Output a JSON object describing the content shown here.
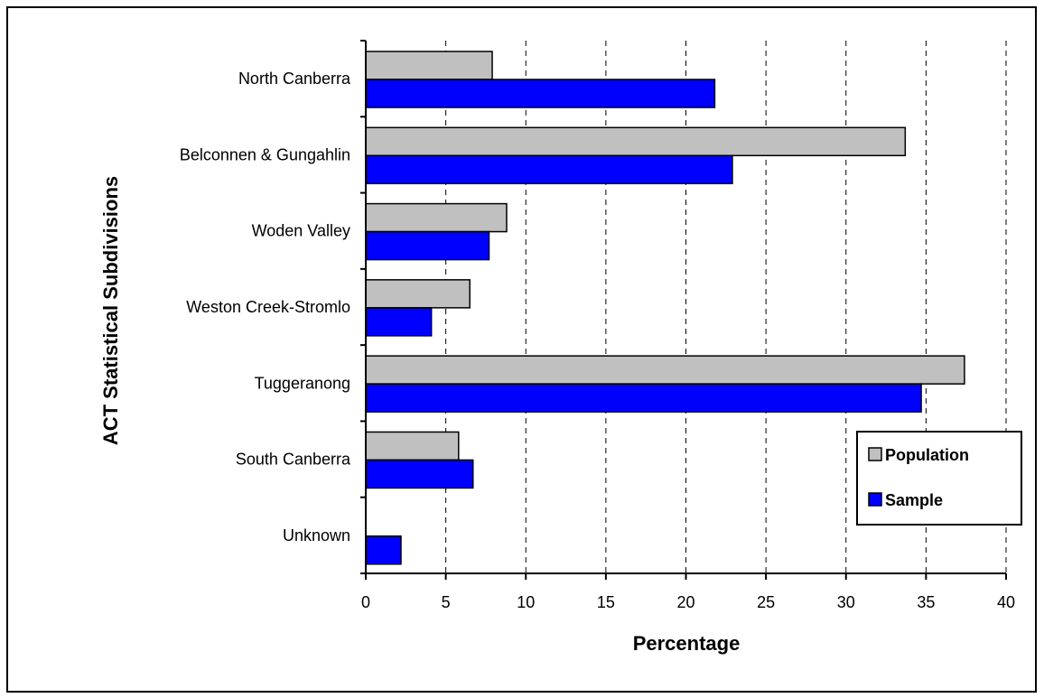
{
  "chart_data": {
    "type": "bar",
    "orientation": "horizontal",
    "xlabel": "Percentage",
    "ylabel": "ACT Statistical Subdivisions",
    "xlim": [
      0,
      40
    ],
    "xticks": [
      0,
      5,
      10,
      15,
      20,
      25,
      30,
      35,
      40
    ],
    "grid": "vertical-dashed",
    "legend_position": "right",
    "categories": [
      "North Canberra",
      "Belconnen & Gungahlin",
      "Woden Valley",
      "Weston Creek-Stromlo",
      "Tuggeranong",
      "South Canberra",
      "Unknown"
    ],
    "series": [
      {
        "name": "Population",
        "color": "#c0c0c0",
        "values": [
          7.9,
          33.7,
          8.8,
          6.5,
          37.4,
          5.8,
          0
        ]
      },
      {
        "name": "Sample",
        "color": "#0000ff",
        "values": [
          21.8,
          22.9,
          7.7,
          4.1,
          34.7,
          6.7,
          2.2
        ]
      }
    ]
  }
}
